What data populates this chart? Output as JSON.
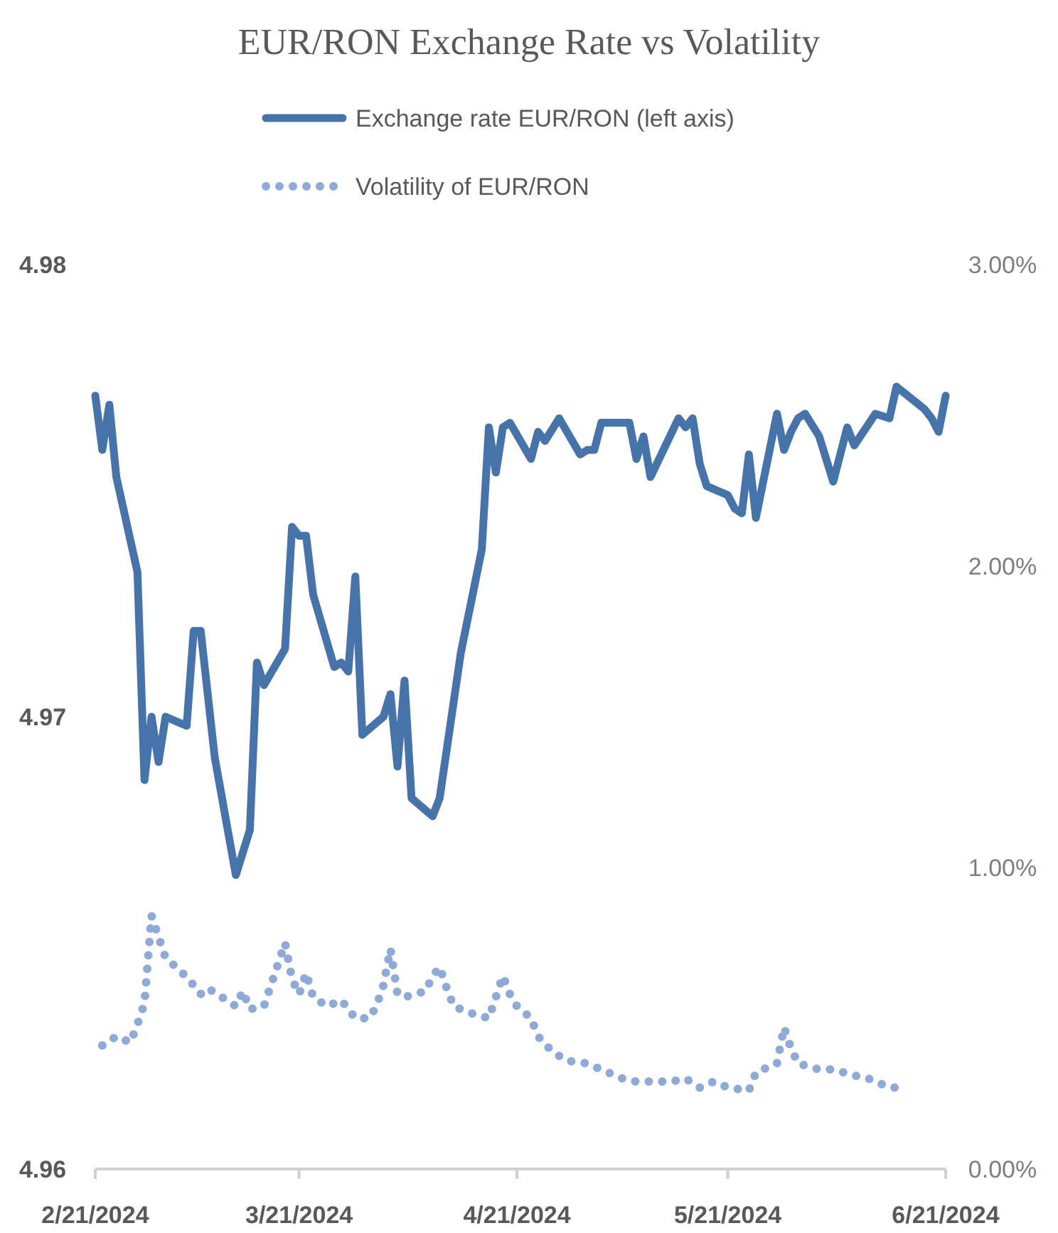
{
  "chart_data": {
    "type": "line",
    "title": "EUR/RON Exchange Rate vs Volatility",
    "x": [
      "2024-02-21",
      "2024-02-22",
      "2024-02-23",
      "2024-02-24",
      "2024-02-27",
      "2024-02-28",
      "2024-02-29",
      "2024-03-01",
      "2024-03-02",
      "2024-03-05",
      "2024-03-06",
      "2024-03-07",
      "2024-03-09",
      "2024-03-12",
      "2024-03-14",
      "2024-03-15",
      "2024-03-16",
      "2024-03-19",
      "2024-03-20",
      "2024-03-21",
      "2024-03-22",
      "2024-03-23",
      "2024-03-26",
      "2024-03-27",
      "2024-03-28",
      "2024-03-29",
      "2024-03-30",
      "2024-04-02",
      "2024-04-03",
      "2024-04-04",
      "2024-04-05",
      "2024-04-06",
      "2024-04-09",
      "2024-04-10",
      "2024-04-13",
      "2024-04-16",
      "2024-04-17",
      "2024-04-18",
      "2024-04-19",
      "2024-04-20",
      "2024-04-23",
      "2024-04-24",
      "2024-04-25",
      "2024-04-27",
      "2024-04-30",
      "2024-05-01",
      "2024-05-02",
      "2024-05-03",
      "2024-05-07",
      "2024-05-08",
      "2024-05-09",
      "2024-05-10",
      "2024-05-14",
      "2024-05-15",
      "2024-05-16",
      "2024-05-17",
      "2024-05-18",
      "2024-05-21",
      "2024-05-22",
      "2024-05-23",
      "2024-05-24",
      "2024-05-25",
      "2024-05-28",
      "2024-05-29",
      "2024-05-30",
      "2024-05-31",
      "2024-06-01",
      "2024-06-03",
      "2024-06-05",
      "2024-06-07",
      "2024-06-08",
      "2024-06-11",
      "2024-06-13",
      "2024-06-14",
      "2024-06-18",
      "2024-06-19",
      "2024-06-20",
      "2024-06-21"
    ],
    "series": [
      {
        "name": "Exchange rate EUR/RON (left axis)",
        "color": "#4673a9",
        "line_style": "solid",
        "values": [
          4.9771,
          4.9759,
          4.9769,
          4.9753,
          4.9732,
          4.9686,
          4.97,
          4.969,
          4.97,
          4.9698,
          4.9719,
          4.9719,
          4.9691,
          4.9665,
          4.9675,
          4.9712,
          4.9707,
          4.9715,
          4.9742,
          4.974,
          4.974,
          4.9727,
          4.9711,
          4.9712,
          4.971,
          4.9731,
          4.9696,
          4.97,
          4.9705,
          4.9689,
          4.9708,
          4.9682,
          4.9678,
          4.9682,
          4.9714,
          4.9737,
          4.9764,
          4.9754,
          4.9764,
          4.9765,
          4.9757,
          4.9763,
          4.9761,
          4.9766,
          4.9758,
          4.9759,
          4.9759,
          4.9765,
          4.9765,
          4.9757,
          4.9762,
          4.9753,
          4.9766,
          4.9764,
          4.9766,
          4.9756,
          4.9751,
          4.9749,
          4.9746,
          4.9745,
          4.9758,
          4.9744,
          4.9767,
          4.9759,
          4.9763,
          4.9766,
          4.9767,
          4.9762,
          4.9752,
          4.9764,
          4.976,
          4.9767,
          4.9766,
          4.9773,
          4.9768,
          4.9766,
          4.9763,
          4.9771
        ]
      },
      {
        "name": "Volatility of EUR/RON",
        "color": "#8faad6",
        "line_style": "dotted",
        "axis": "y2",
        "x": [
          "2024-02-22",
          "2024-02-24",
          "2024-02-26",
          "2024-02-27",
          "2024-02-28",
          "2024-02-29",
          "2024-03-01",
          "2024-03-02",
          "2024-03-04",
          "2024-03-06",
          "2024-03-07",
          "2024-03-08",
          "2024-03-12",
          "2024-03-13",
          "2024-03-14",
          "2024-03-16",
          "2024-03-17",
          "2024-03-18",
          "2024-03-19",
          "2024-03-20",
          "2024-03-21",
          "2024-03-22",
          "2024-03-23",
          "2024-03-25",
          "2024-03-27",
          "2024-03-29",
          "2024-03-31",
          "2024-04-01",
          "2024-04-02",
          "2024-04-03",
          "2024-04-04",
          "2024-04-05",
          "2024-04-08",
          "2024-04-09",
          "2024-04-10",
          "2024-04-11",
          "2024-04-12",
          "2024-04-14",
          "2024-04-17",
          "2024-04-18",
          "2024-04-19",
          "2024-04-20",
          "2024-04-21",
          "2024-04-23",
          "2024-04-24",
          "2024-04-26",
          "2024-04-28",
          "2024-05-01",
          "2024-05-06",
          "2024-05-08",
          "2024-05-10",
          "2024-05-13",
          "2024-05-15",
          "2024-05-17",
          "2024-05-19",
          "2024-05-21",
          "2024-05-24",
          "2024-05-25",
          "2024-05-28",
          "2024-05-29",
          "2024-05-30",
          "2024-05-31",
          "2024-06-03",
          "2024-06-05",
          "2024-06-08",
          "2024-06-10",
          "2024-06-13",
          "2024-06-15"
        ],
        "values": [
          0.41,
          0.44,
          0.42,
          0.48,
          0.55,
          0.84,
          0.77,
          0.7,
          0.66,
          0.61,
          0.58,
          0.6,
          0.54,
          0.59,
          0.53,
          0.54,
          0.61,
          0.68,
          0.75,
          0.63,
          0.58,
          0.65,
          0.57,
          0.54,
          0.56,
          0.5,
          0.5,
          0.54,
          0.61,
          0.73,
          0.58,
          0.57,
          0.59,
          0.64,
          0.67,
          0.6,
          0.54,
          0.52,
          0.5,
          0.57,
          0.64,
          0.58,
          0.54,
          0.5,
          0.44,
          0.39,
          0.36,
          0.35,
          0.3,
          0.29,
          0.29,
          0.29,
          0.3,
          0.27,
          0.29,
          0.27,
          0.26,
          0.32,
          0.35,
          0.47,
          0.4,
          0.35,
          0.33,
          0.33,
          0.31,
          0.3,
          0.27,
          0.27
        ]
      }
    ],
    "xlim": [
      "2024-02-21",
      "2024-06-21"
    ],
    "xticks": [
      {
        "value": "2024-02-21",
        "label": "2/21/2024"
      },
      {
        "value": "2024-03-21",
        "label": "3/21/2024"
      },
      {
        "value": "2024-04-21",
        "label": "4/21/2024"
      },
      {
        "value": "2024-05-21",
        "label": "5/21/2024"
      },
      {
        "value": "2024-06-21",
        "label": "6/21/2024"
      }
    ],
    "ylim": [
      4.96,
      4.98
    ],
    "yticks": [
      4.96,
      4.97,
      4.98
    ],
    "y2lim": [
      0,
      3
    ],
    "y2ticks": [
      {
        "value": 0,
        "label": "0.00%"
      },
      {
        "value": 1,
        "label": "1.00%"
      },
      {
        "value": 2,
        "label": "2.00%"
      },
      {
        "value": 3,
        "label": "3.00%"
      }
    ],
    "legend": "top",
    "grid": false,
    "marker": "none"
  }
}
